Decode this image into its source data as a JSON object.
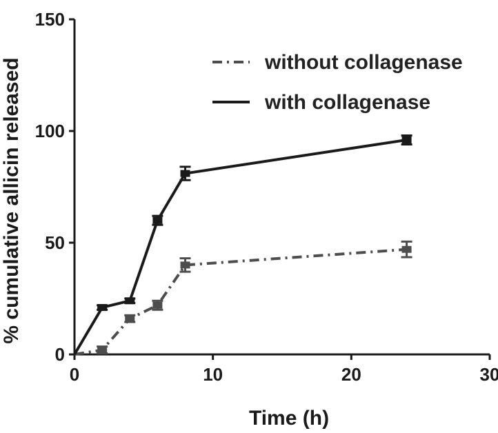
{
  "chart_data": {
    "type": "line",
    "xlabel": "Time (h)",
    "ylabel": "% cumulative allicin released",
    "xlim": [
      0,
      30
    ],
    "ylim": [
      0,
      150
    ],
    "xticks": [
      "0",
      "10",
      "20",
      "30"
    ],
    "yticks": [
      "0",
      "50",
      "100",
      "150"
    ],
    "grid": false,
    "legend_position": "top-right",
    "series": [
      {
        "name": "without collagenase",
        "style": "dash-dot",
        "color": "#4d4d4d",
        "x": [
          0,
          2,
          4,
          6,
          8,
          24
        ],
        "y": [
          0,
          2,
          16,
          22,
          40,
          47
        ],
        "error": [
          0,
          1.5,
          1.5,
          2,
          3,
          3.5
        ]
      },
      {
        "name": "with collagenase",
        "style": "solid",
        "color": "#1a1a1a",
        "x": [
          0,
          2,
          4,
          6,
          8,
          24
        ],
        "y": [
          0,
          21,
          24,
          60,
          81,
          96
        ],
        "error": [
          0,
          1,
          1,
          2,
          3,
          2
        ]
      }
    ]
  }
}
